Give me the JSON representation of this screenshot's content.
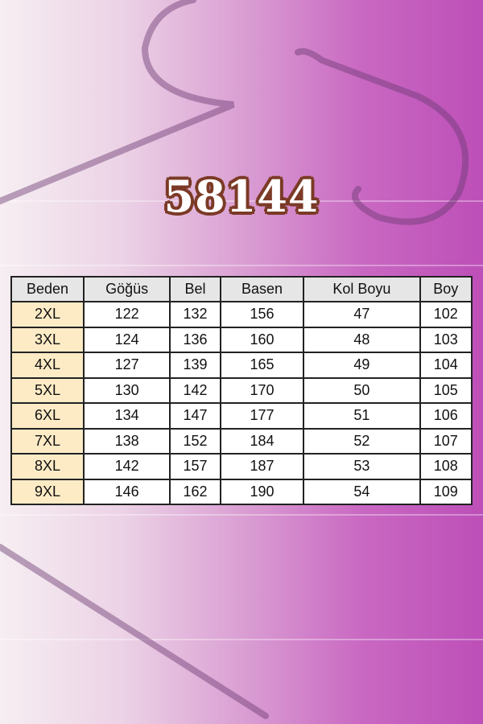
{
  "title": "58144",
  "colors": {
    "title_fill": "#ffffff",
    "title_outline": "#7b3a26",
    "size_cell": "#fdebc6",
    "header": "#e6e6e6"
  },
  "table": {
    "headers": [
      "Beden",
      "Göğüs",
      "Bel",
      "Basen",
      "Kol Boyu",
      "Boy"
    ],
    "rows": [
      [
        "2XL",
        "122",
        "132",
        "156",
        "47",
        "102"
      ],
      [
        "3XL",
        "124",
        "136",
        "160",
        "48",
        "103"
      ],
      [
        "4XL",
        "127",
        "139",
        "165",
        "49",
        "104"
      ],
      [
        "5XL",
        "130",
        "142",
        "170",
        "50",
        "105"
      ],
      [
        "6XL",
        "134",
        "147",
        "177",
        "51",
        "106"
      ],
      [
        "7XL",
        "138",
        "152",
        "184",
        "52",
        "107"
      ],
      [
        "8XL",
        "142",
        "157",
        "187",
        "53",
        "108"
      ],
      [
        "9XL",
        "146",
        "162",
        "190",
        "54",
        "109"
      ]
    ]
  }
}
